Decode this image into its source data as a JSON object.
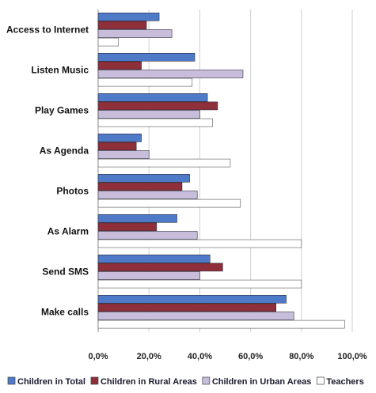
{
  "chart_data": {
    "type": "bar",
    "orientation": "horizontal",
    "categories": [
      "Access to Internet",
      "Listen Music",
      "Play Games",
      "As Agenda",
      "Photos",
      "As Alarm",
      "Send SMS",
      "Make calls"
    ],
    "series": [
      {
        "name": "Children in Total",
        "color": "#4f7ac8",
        "values": [
          24,
          38,
          43,
          17,
          36,
          31,
          44,
          74
        ]
      },
      {
        "name": "Children in Rural Areas",
        "color": "#8e2f3a",
        "values": [
          19,
          17,
          47,
          15,
          33,
          23,
          49,
          70
        ]
      },
      {
        "name": "Children in Urban Areas",
        "color": "#c8bedb",
        "values": [
          29,
          57,
          40,
          20,
          39,
          39,
          40,
          77
        ]
      },
      {
        "name": "Teachers",
        "color": "#ffffff",
        "values": [
          8,
          37,
          45,
          52,
          56,
          80,
          80,
          97
        ]
      }
    ],
    "xlim": [
      0,
      100
    ],
    "xticks": [
      "0,0%",
      "20,0%",
      "40,0%",
      "60,0%",
      "80,0%",
      "100,0%"
    ],
    "grid": true,
    "legend_position": "bottom"
  }
}
